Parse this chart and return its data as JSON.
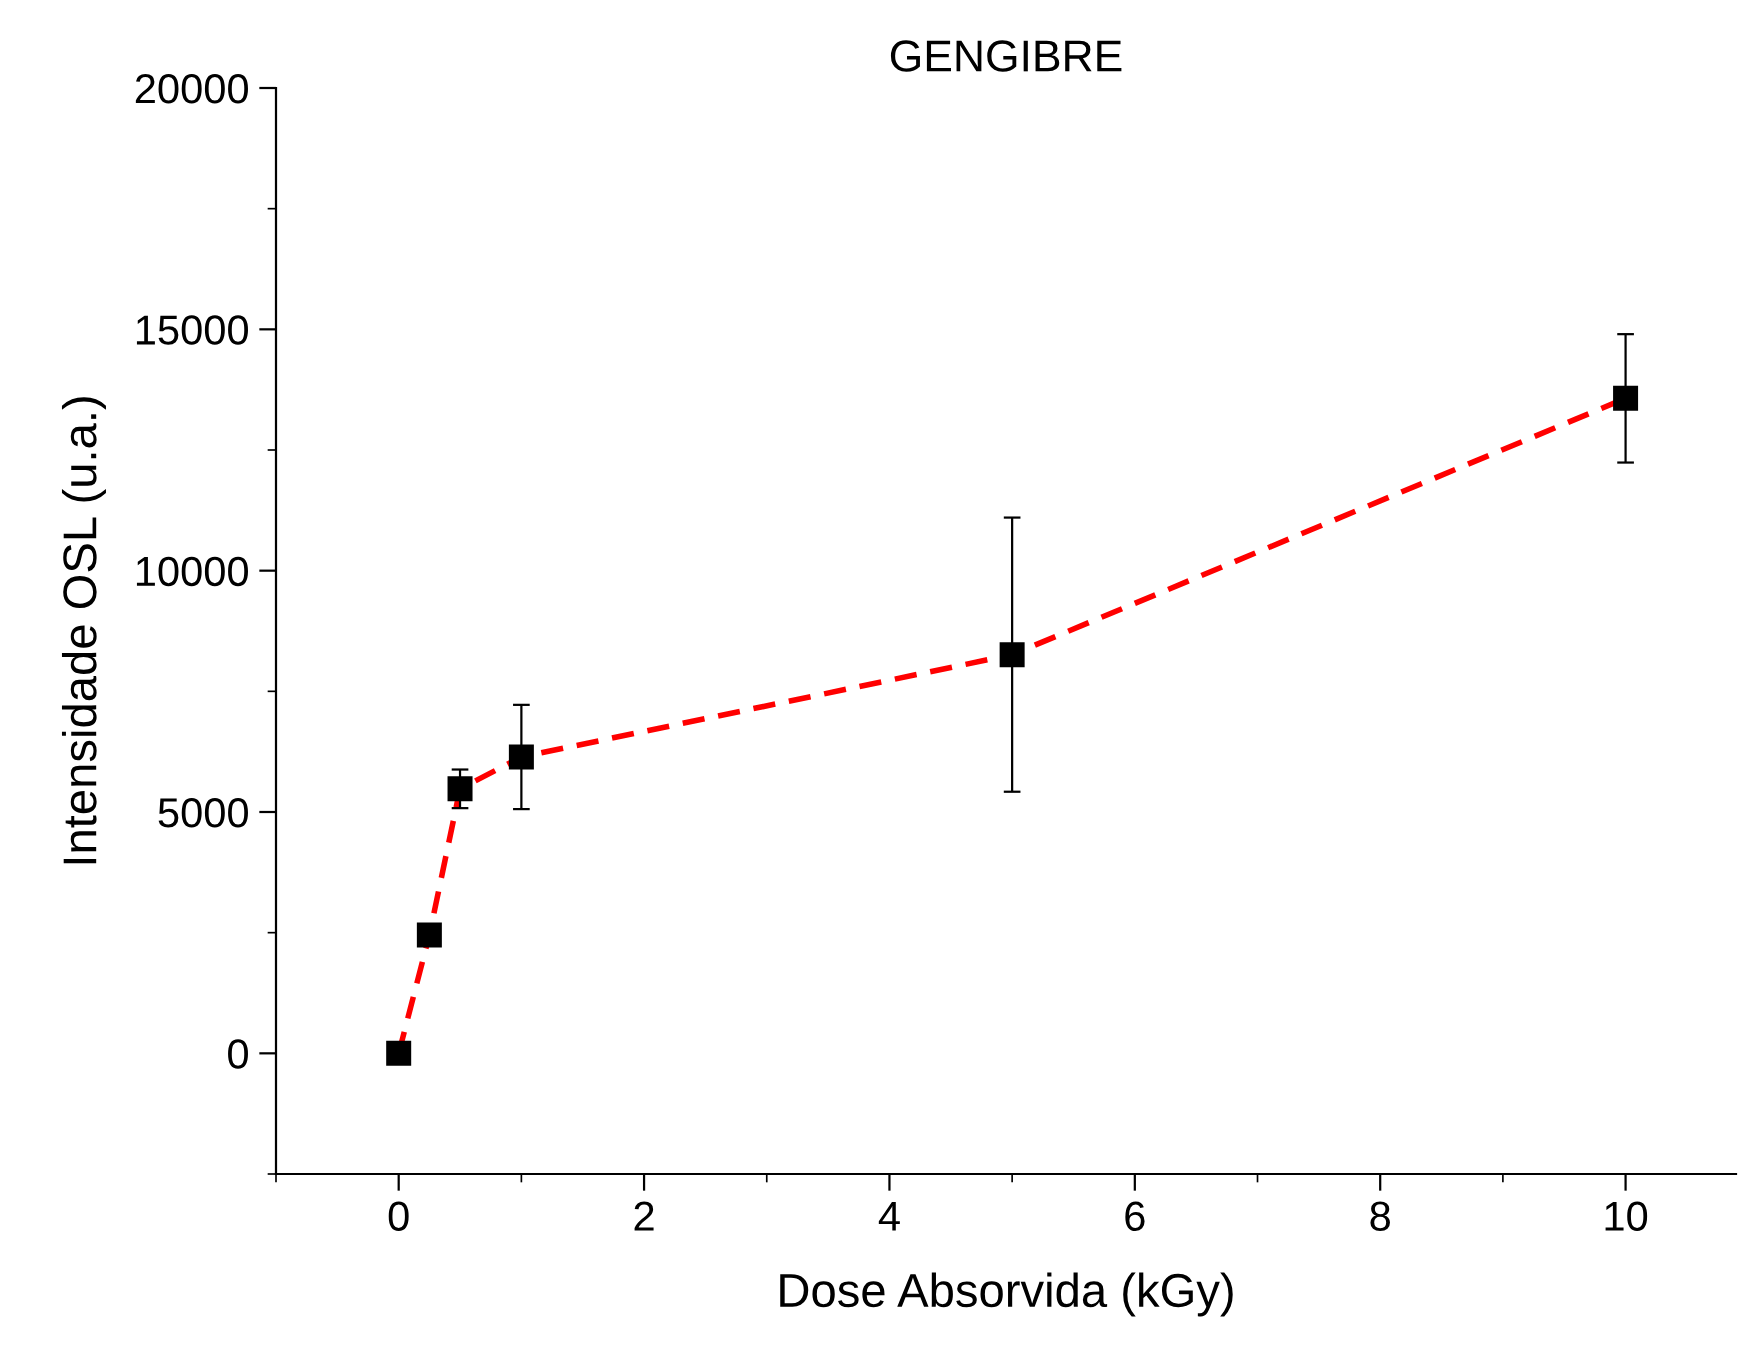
{
  "chart_data": {
    "type": "line",
    "title": "GENGIBRE",
    "xlabel": "Dose Absorvida (kGy)",
    "ylabel": "Intensidade OSL (u.a.)",
    "x": [
      0,
      0.25,
      0.5,
      1,
      5,
      10
    ],
    "series": [
      {
        "color": "#ff0000",
        "values": [
          0,
          2450,
          5480,
          6140,
          8260,
          13570
        ],
        "errors": [
          null,
          null,
          400,
          1080,
          2840,
          1330
        ]
      }
    ],
    "marker": "square",
    "line_style": "dashed",
    "xlim": [
      -1,
      10.9
    ],
    "xticks": [
      0,
      2,
      4,
      6,
      8,
      10
    ],
    "ylim": [
      -2500,
      20000
    ],
    "yticks": [
      0,
      5000,
      10000,
      15000,
      20000
    ],
    "grid": false
  }
}
